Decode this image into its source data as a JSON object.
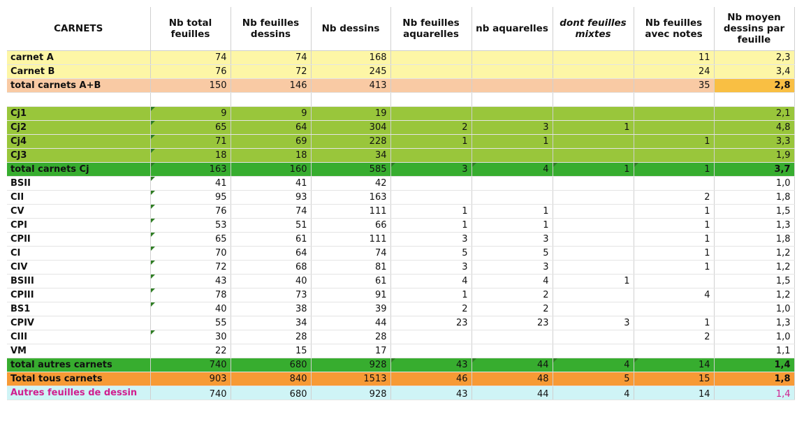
{
  "colors": {
    "yellow": "#fdf6a6",
    "peach": "#f9caa4",
    "gold": "#f9bf43",
    "light_green": "#99c63b",
    "mid_green": "#37ad2f",
    "orange": "#f79a35",
    "cyan": "#cff4f6",
    "magenta": "#d01f8f"
  },
  "headers": [
    "CARNETS",
    "Nb total feuilles",
    "Nb feuilles dessins",
    "Nb dessins",
    "Nb feuilles aquarelles",
    "nb aquarelles",
    "dont feuilles mixtes",
    "Nb feuilles avec notes",
    "Nb moyen dessins par feuille"
  ],
  "rows": [
    {
      "cells": [
        "carnet A",
        "74",
        "74",
        "168",
        "",
        "",
        "",
        "11",
        "2,3"
      ],
      "bg": "#fdf6a6"
    },
    {
      "cells": [
        "Carnet B",
        "76",
        "72",
        "245",
        "",
        "",
        "",
        "24",
        "3,4"
      ],
      "bg": "#fdf6a6"
    },
    {
      "cells": [
        "total carnets A+B",
        "150",
        "146",
        "413",
        "",
        "",
        "",
        "35",
        "2,8"
      ],
      "bg": "#f9caa4",
      "last_bg": "#f9bf43",
      "last_bold": true
    },
    {
      "cells": [
        "",
        "",
        "",
        "",
        "",
        "",
        "",
        "",
        ""
      ],
      "sep": true
    },
    {
      "cells": [
        "Cj1",
        "9",
        "9",
        "19",
        "",
        "",
        "",
        "",
        "2,1"
      ],
      "bg": "#99c63b",
      "notes": [
        1
      ]
    },
    {
      "cells": [
        "Cj2",
        "65",
        "64",
        "304",
        "2",
        "3",
        "1",
        "",
        "4,8"
      ],
      "bg": "#99c63b",
      "notes": [
        1
      ]
    },
    {
      "cells": [
        "Cj4",
        "71",
        "69",
        "228",
        "1",
        "1",
        "",
        "1",
        "3,3"
      ],
      "bg": "#99c63b",
      "notes": [
        1
      ]
    },
    {
      "cells": [
        "CJ3",
        "18",
        "18",
        "34",
        "",
        "",
        "",
        "",
        "1,9"
      ],
      "bg": "#99c63b",
      "notes": [
        1
      ]
    },
    {
      "cells": [
        "total carnets Cj",
        "163",
        "160",
        "585",
        "3",
        "4",
        "1",
        "1",
        "3,7"
      ],
      "bg": "#37ad2f",
      "notes": [
        1,
        4,
        5,
        6,
        7
      ],
      "last_bold": true
    },
    {
      "cells": [
        "BSII",
        "41",
        "41",
        "42",
        "",
        "",
        "",
        "",
        "1,0"
      ],
      "notes": [
        1
      ]
    },
    {
      "cells": [
        "CII",
        "95",
        "93",
        "163",
        "",
        "",
        "",
        "2",
        "1,8"
      ],
      "notes": [
        1
      ]
    },
    {
      "cells": [
        "CV",
        "76",
        "74",
        "111",
        "1",
        "1",
        "",
        "1",
        "1,5"
      ],
      "notes": [
        1
      ]
    },
    {
      "cells": [
        "CPI",
        "53",
        "51",
        "66",
        "1",
        "1",
        "",
        "1",
        "1,3"
      ],
      "notes": [
        1
      ]
    },
    {
      "cells": [
        "CPII",
        "65",
        "61",
        "111",
        "3",
        "3",
        "",
        "1",
        "1,8"
      ],
      "notes": [
        1
      ]
    },
    {
      "cells": [
        "CI",
        "70",
        "64",
        "74",
        "5",
        "5",
        "",
        "1",
        "1,2"
      ],
      "notes": [
        1
      ]
    },
    {
      "cells": [
        "CIV",
        "72",
        "68",
        "81",
        "3",
        "3",
        "",
        "1",
        "1,2"
      ],
      "notes": [
        1
      ]
    },
    {
      "cells": [
        "BSIII",
        "43",
        "40",
        "61",
        "4",
        "4",
        "1",
        "",
        "1,5"
      ],
      "notes": [
        1
      ]
    },
    {
      "cells": [
        "CPIII",
        "78",
        "73",
        "91",
        "1",
        "2",
        "",
        "4",
        "1,2"
      ],
      "notes": [
        1
      ]
    },
    {
      "cells": [
        "BS1",
        "40",
        "38",
        "39",
        "2",
        "2",
        "",
        "",
        "1,0"
      ],
      "notes": [
        1
      ]
    },
    {
      "cells": [
        "CPIV",
        "55",
        "34",
        "44",
        "23",
        "23",
        "3",
        "1",
        "1,3"
      ]
    },
    {
      "cells": [
        "CIII",
        "30",
        "28",
        "28",
        "",
        "",
        "",
        "2",
        "1,0"
      ],
      "notes": [
        1
      ]
    },
    {
      "cells": [
        "VM",
        "22",
        "15",
        "17",
        "",
        "",
        "",
        "",
        "1,1"
      ]
    },
    {
      "cells": [
        "total autres carnets",
        "740",
        "680",
        "928",
        "43",
        "44",
        "4",
        "14",
        "1,4"
      ],
      "bg": "#37ad2f",
      "notes": [
        4,
        5,
        6,
        7
      ],
      "last_bold": true
    },
    {
      "cells": [
        "Total tous carnets",
        "903",
        "840",
        "1513",
        "46",
        "48",
        "5",
        "15",
        "1,8"
      ],
      "bg": "#f79a35",
      "last_bold": true
    },
    {
      "cells": [
        "Autres feuilles de dessin",
        "740",
        "680",
        "928",
        "43",
        "44",
        "4",
        "14",
        "1,4"
      ],
      "bg": "#cff4f6",
      "label_color": "#d01f8f",
      "last_color": "#d01f8f",
      "tall": true
    }
  ]
}
